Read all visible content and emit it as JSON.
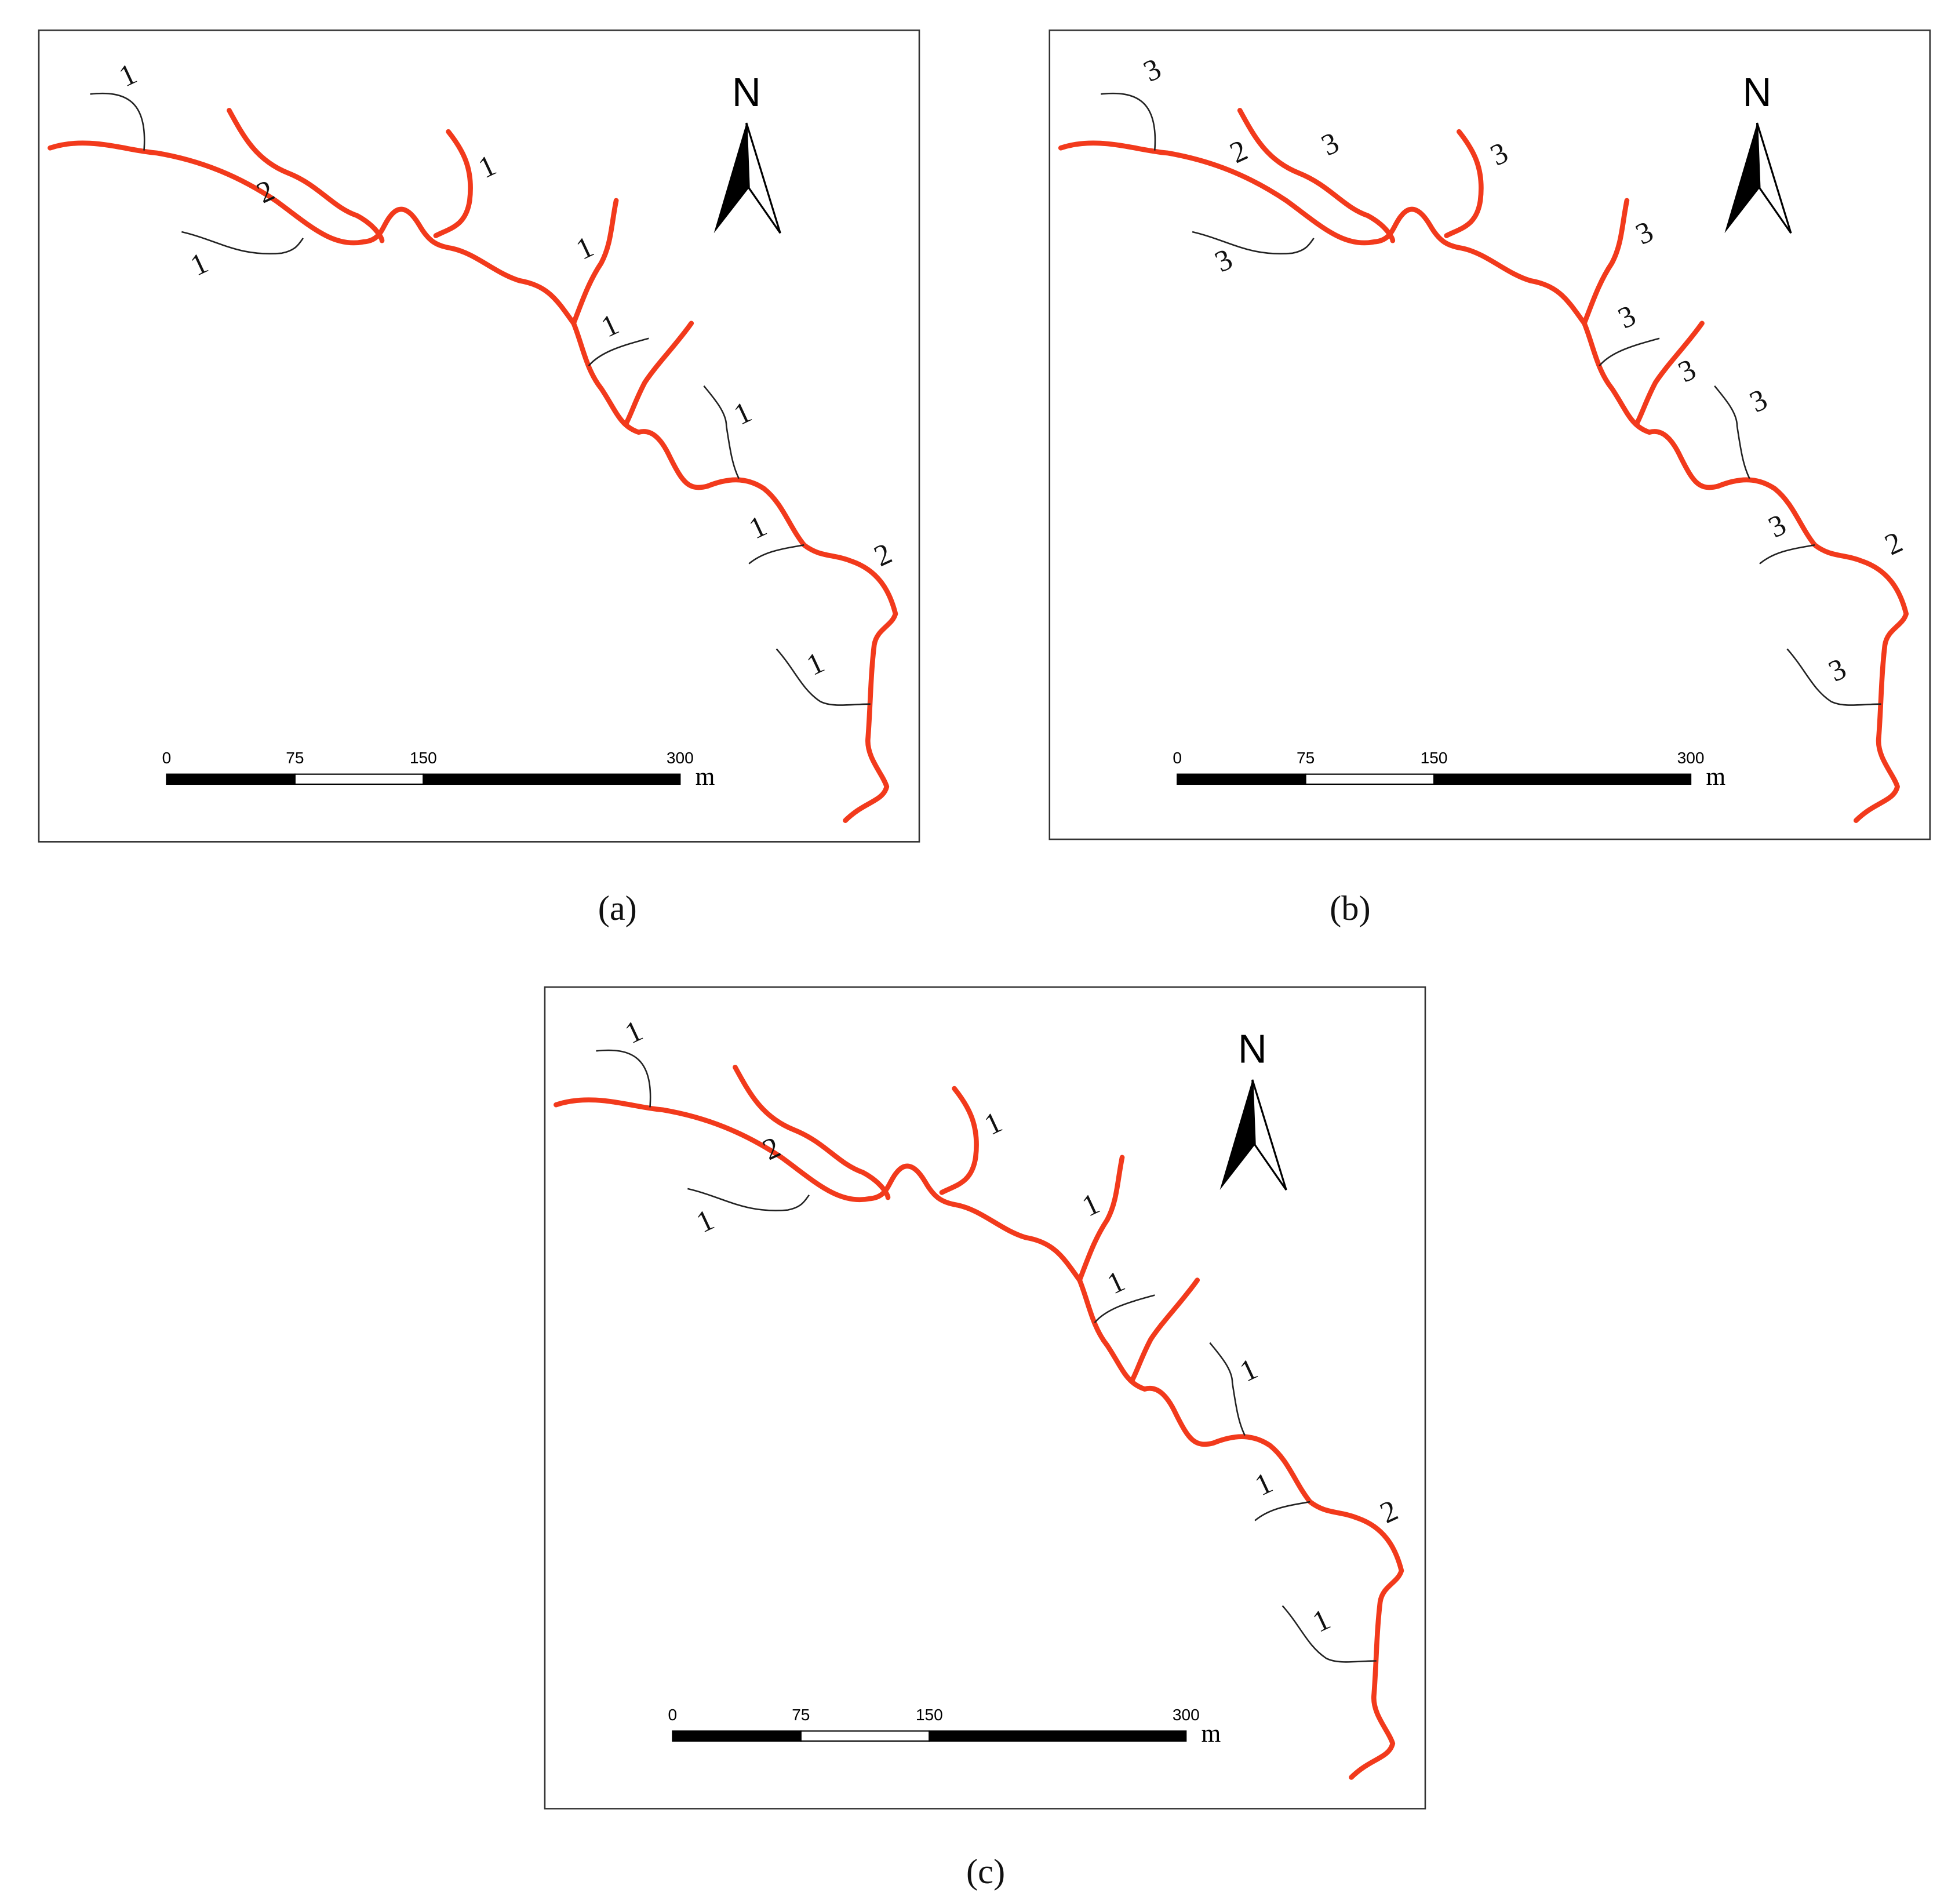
{
  "panels": [
    {
      "caption": "(a)",
      "north": "N",
      "scale": {
        "ticks": [
          0,
          75,
          150,
          300
        ],
        "unit": "m"
      },
      "labels": [
        "1",
        "2",
        "1",
        "1",
        "1",
        "1",
        "1",
        "1",
        "2",
        "1"
      ]
    },
    {
      "caption": "(b)",
      "north": "N",
      "scale": {
        "ticks": [
          0,
          75,
          150,
          300
        ],
        "unit": "m"
      },
      "labels": [
        "3",
        "2",
        "3",
        "3",
        "3",
        "3",
        "3",
        "3",
        "3",
        "3",
        "2",
        "3"
      ]
    },
    {
      "caption": "(c)",
      "north": "N",
      "scale": {
        "ticks": [
          0,
          75,
          150,
          300
        ],
        "unit": "m"
      },
      "labels": [
        "1",
        "2",
        "1",
        "1",
        "1",
        "1",
        "1",
        "1",
        "2",
        "1"
      ]
    }
  ]
}
